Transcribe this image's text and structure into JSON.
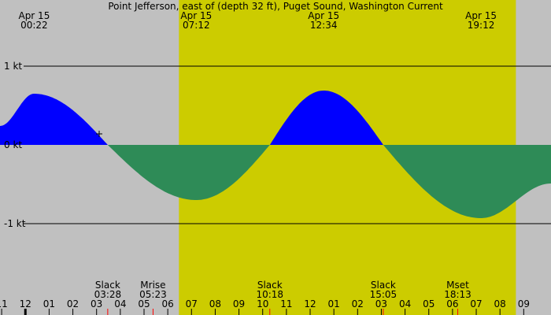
{
  "chart_data": {
    "type": "area",
    "title": "Point Jefferson, east of (depth 32 ft), Puget Sound, Washington Current",
    "date": "Apr 15",
    "colors": {
      "background": "#c0c0c0",
      "daylight": "#cccc00",
      "flood": "#0000ff",
      "ebb": "#2e8b57",
      "gridline": "#000000",
      "moon_tick": "#ff0000"
    },
    "x_unit": "hours since Apr 15 00:00",
    "xlim": [
      -1.07,
      22.15
    ],
    "ylim": [
      -1.96,
      1.96
    ],
    "y_ticks": [
      {
        "value": 1,
        "label": "1 kt"
      },
      {
        "value": 0,
        "label": "0 kt"
      },
      {
        "value": -1,
        "label": "-1 kt"
      }
    ],
    "daylight_span": [
      6.47,
      20.67
    ],
    "top_labels": [
      {
        "date": "Apr 15",
        "time": "00:22",
        "hour": 0.37
      },
      {
        "date": "Apr 15",
        "time": "07:12",
        "hour": 7.2
      },
      {
        "date": "Apr 15",
        "time": "12:34",
        "hour": 12.57
      },
      {
        "date": "Apr 15",
        "time": "19:12",
        "hour": 19.2
      }
    ],
    "events": [
      {
        "name": "Slack",
        "time": "03:28",
        "hour": 3.47
      },
      {
        "name": "Mrise",
        "time": "05:23",
        "hour": 5.38
      },
      {
        "name": "Slack",
        "time": "10:18",
        "hour": 10.3
      },
      {
        "name": "Slack",
        "time": "15:05",
        "hour": 15.08
      },
      {
        "name": "Mset",
        "time": "18:13",
        "hour": 18.22
      }
    ],
    "hour_ticks": [
      "11",
      "12",
      "01",
      "02",
      "03",
      "04",
      "05",
      "06",
      "07",
      "08",
      "09",
      "10",
      "11",
      "12",
      "01",
      "02",
      "03",
      "04",
      "05",
      "06",
      "07",
      "08",
      "09"
    ],
    "series": [
      {
        "x": [
          -1.07,
          0.37,
          3.47,
          7.2,
          10.3,
          12.57,
          15.08,
          19.2,
          22.15
        ],
        "y": [
          0.24,
          0.65,
          0,
          -0.7,
          0,
          0.69,
          0,
          -0.93,
          -0.49
        ]
      }
    ]
  }
}
